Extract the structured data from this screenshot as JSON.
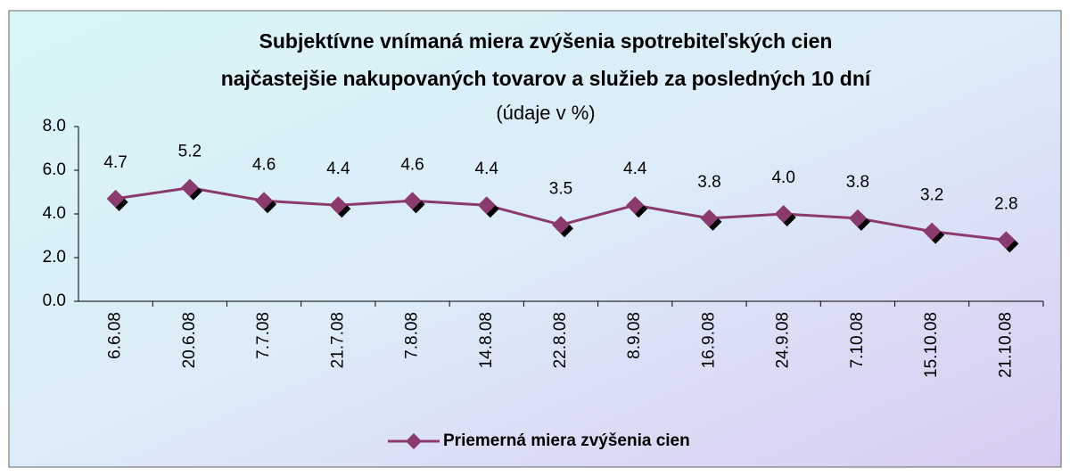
{
  "chart_data": {
    "type": "line",
    "title": [
      "Subjektívne vnímaná miera zvýšenia spotrebiteľských cien",
      "najčastejšie nakupovaných tovarov a služieb za posledných 10 dní"
    ],
    "subtitle": "(údaje v %)",
    "categories": [
      "6.6.08",
      "20.6.08",
      "7.7.08",
      "21.7.08",
      "7.8.08",
      "14.8.08",
      "22.8.08",
      "8.9.08",
      "16.9.08",
      "24.9.08",
      "7.10.08",
      "15.10.08",
      "21.10.08"
    ],
    "series": [
      {
        "name": "Priemerná miera zvýšenia cien",
        "color": "#8b3a6e",
        "values": [
          4.7,
          5.2,
          4.6,
          4.4,
          4.6,
          4.4,
          3.5,
          4.4,
          3.8,
          4.0,
          3.8,
          3.2,
          2.8
        ],
        "value_labels": [
          "4.7",
          "5.2",
          "4.6",
          "4.4",
          "4.6",
          "4.4",
          "3.5",
          "4.4",
          "3.8",
          "4.0",
          "3.8",
          "3.2",
          "2.8"
        ]
      }
    ],
    "ylim": [
      0,
      8
    ],
    "yticks": [
      {
        "value": 0,
        "label": "0.0"
      },
      {
        "value": 2,
        "label": "2.0"
      },
      {
        "value": 4,
        "label": "4.0"
      },
      {
        "value": 6,
        "label": "6.0"
      },
      {
        "value": 8,
        "label": "8.0"
      }
    ],
    "legend": "bottom"
  }
}
